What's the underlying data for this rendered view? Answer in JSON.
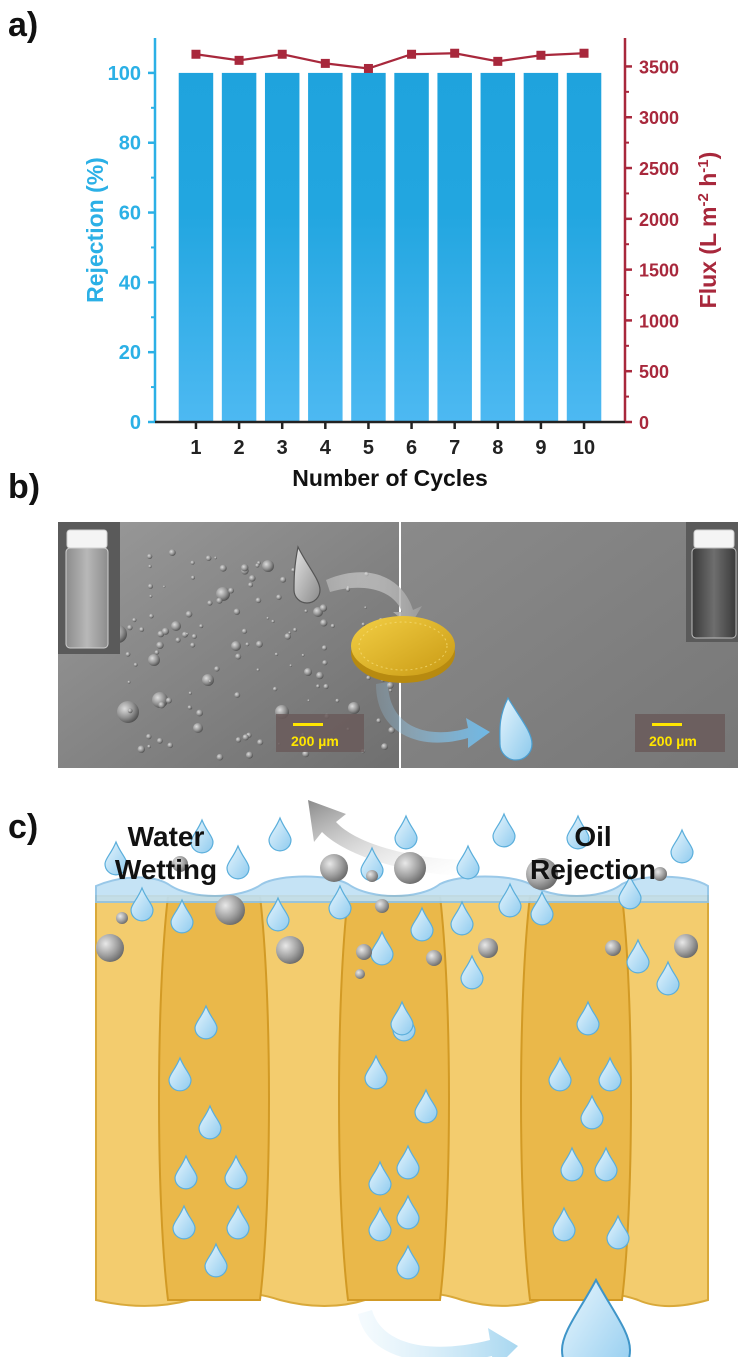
{
  "figure": {
    "panels": [
      {
        "label": "a)"
      },
      {
        "label": "b)"
      },
      {
        "label": "c)"
      }
    ]
  },
  "chart_data": {
    "type": "bar",
    "categories": [
      "1",
      "2",
      "3",
      "4",
      "5",
      "6",
      "7",
      "8",
      "9",
      "10"
    ],
    "series": [
      {
        "values": [
          100,
          100,
          100,
          100,
          100,
          100,
          100,
          100,
          100,
          100
        ],
        "axis": "left",
        "type": "bar",
        "color": "#22a6e0"
      },
      {
        "values": [
          3620,
          3560,
          3620,
          3530,
          3480,
          3620,
          3630,
          3550,
          3610,
          3630
        ],
        "axis": "right",
        "type": "line",
        "color": "#a8283c"
      }
    ],
    "xlabel": "Number of Cycles",
    "ylabel": "Rejection (%)",
    "y2label_parts": [
      "Flux (L m",
      "-2",
      " h",
      "-1",
      ")"
    ],
    "ylim": [
      0,
      110
    ],
    "y2lim": [
      0,
      3780
    ],
    "yticks": [
      0,
      20,
      40,
      60,
      80,
      100
    ],
    "y2ticks": [
      0,
      500,
      1000,
      1500,
      2000,
      2500,
      3000,
      3500
    ],
    "left_axis_color": "#2bb0e6",
    "right_axis_color": "#a8283c"
  },
  "panel_b": {
    "scale_bar_left": "200 µm",
    "scale_bar_right": "200 µm",
    "membrane_color": "#e7b92a"
  },
  "panel_c": {
    "label_water": [
      "Water",
      "Wetting"
    ],
    "label_oil": [
      "Oil",
      "Rejection"
    ],
    "membrane_color": "#f2c766",
    "water_color": "#a9d6f0"
  }
}
